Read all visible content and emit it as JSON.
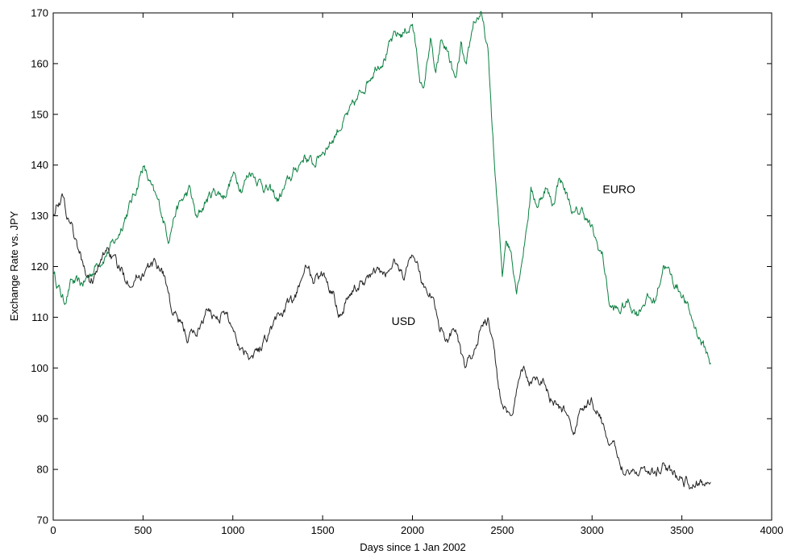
{
  "chart_data": {
    "type": "line",
    "title": "",
    "xlabel": "Days since 1 Jan 2002",
    "ylabel": "Exchange Rate vs. JPY",
    "xlim": [
      0,
      4000
    ],
    "ylim": [
      70,
      170
    ],
    "xticks": [
      0,
      500,
      1000,
      1500,
      2000,
      2500,
      3000,
      3500,
      4000
    ],
    "yticks": [
      70,
      80,
      90,
      100,
      110,
      120,
      130,
      140,
      150,
      160,
      170
    ],
    "grid": false,
    "legend": "none",
    "annotations": [
      {
        "text": "EURO",
        "x": 3150,
        "y": 134.5
      },
      {
        "text": "USD",
        "x": 1950,
        "y": 108.5
      }
    ],
    "series": [
      {
        "name": "EURO",
        "color": "#0a8040",
        "x": [
          0,
          30,
          60,
          100,
          150,
          200,
          250,
          300,
          350,
          400,
          450,
          500,
          520,
          560,
          600,
          640,
          680,
          720,
          760,
          800,
          850,
          900,
          950,
          1000,
          1050,
          1100,
          1150,
          1200,
          1250,
          1300,
          1350,
          1400,
          1450,
          1500,
          1550,
          1600,
          1650,
          1700,
          1750,
          1800,
          1850,
          1900,
          1950,
          2000,
          2030,
          2060,
          2100,
          2130,
          2160,
          2200,
          2240,
          2270,
          2300,
          2340,
          2380,
          2420,
          2440,
          2460,
          2480,
          2500,
          2520,
          2550,
          2580,
          2620,
          2660,
          2700,
          2740,
          2780,
          2820,
          2860,
          2900,
          2950,
          3000,
          3030,
          3060,
          3100,
          3150,
          3200,
          3250,
          3300,
          3350,
          3400,
          3450,
          3500,
          3550,
          3600,
          3650,
          3660
        ],
        "values": [
          119,
          116,
          113,
          117,
          116,
          118,
          121,
          123,
          125,
          130,
          134,
          140,
          138,
          134,
          131,
          126,
          131,
          133,
          135,
          129,
          133,
          135,
          134,
          138,
          136,
          139,
          137,
          135,
          133,
          136,
          139,
          142,
          140,
          143,
          145,
          148,
          150,
          153,
          157,
          160,
          162,
          165,
          166,
          168,
          160,
          154,
          165,
          157,
          164,
          162,
          156,
          163,
          158,
          168,
          170,
          162,
          150,
          138,
          128,
          118,
          126,
          123,
          116,
          124,
          135,
          132,
          136,
          132,
          138,
          134,
          130,
          131,
          127,
          124,
          122,
          112,
          111,
          113,
          111,
          114,
          113,
          121,
          117,
          115,
          110,
          106,
          102,
          101
        ]
      },
      {
        "name": "USD",
        "color": "#222222",
        "x": [
          0,
          20,
          50,
          80,
          100,
          130,
          160,
          200,
          250,
          300,
          350,
          400,
          450,
          500,
          550,
          600,
          630,
          660,
          700,
          750,
          800,
          850,
          900,
          950,
          1000,
          1050,
          1100,
          1150,
          1200,
          1250,
          1300,
          1350,
          1400,
          1450,
          1500,
          1550,
          1600,
          1650,
          1700,
          1750,
          1800,
          1850,
          1900,
          1950,
          2000,
          2030,
          2060,
          2100,
          2150,
          2200,
          2240,
          2270,
          2300,
          2340,
          2380,
          2420,
          2450,
          2480,
          2510,
          2540,
          2580,
          2620,
          2650,
          2700,
          2750,
          2800,
          2850,
          2900,
          2950,
          3000,
          3050,
          3100,
          3150,
          3200,
          3250,
          3300,
          3350,
          3400,
          3450,
          3500,
          3550,
          3600,
          3650,
          3660
        ],
        "values": [
          131,
          133,
          134,
          130,
          129,
          124,
          121,
          117,
          119,
          124,
          120,
          118,
          118,
          119,
          120,
          120,
          117,
          111,
          109,
          106,
          107,
          111,
          110,
          111,
          108,
          104,
          103,
          104,
          107,
          110,
          112,
          113,
          121,
          117,
          118,
          116,
          111,
          115,
          116,
          118,
          119,
          118,
          121,
          118,
          123,
          120,
          116,
          115,
          109,
          106,
          109,
          102,
          99,
          103,
          108,
          109,
          104,
          96,
          92,
          89,
          95,
          100,
          97,
          99,
          96,
          92,
          91,
          88,
          92,
          93,
          90,
          85,
          82,
          80,
          80,
          80,
          79,
          81,
          79,
          78,
          77,
          77,
          77.5,
          77.5
        ]
      }
    ]
  }
}
